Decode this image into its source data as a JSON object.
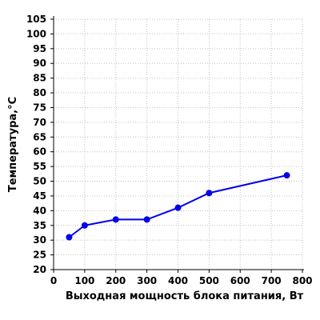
{
  "chart_data": {
    "type": "line",
    "title": "",
    "xlabel": "Выходная мощность блока питания, Вт",
    "ylabel": "Температура,°С",
    "xlim": [
      0,
      800
    ],
    "ylim": [
      20,
      105
    ],
    "x_ticks": [
      0,
      100,
      200,
      300,
      400,
      500,
      600,
      700,
      800
    ],
    "y_ticks": [
      20,
      25,
      30,
      35,
      40,
      45,
      50,
      55,
      60,
      65,
      70,
      75,
      80,
      85,
      90,
      95,
      100,
      105
    ],
    "grid": true,
    "legend": "none",
    "colors": {
      "series": "#0000ee",
      "grid": "#c0c0c0",
      "axis": "#000000"
    },
    "series": [
      {
        "x": [
          50,
          100,
          200,
          300,
          400,
          500,
          750
        ],
        "y": [
          31,
          35,
          37,
          37,
          41,
          46,
          52
        ]
      }
    ]
  }
}
